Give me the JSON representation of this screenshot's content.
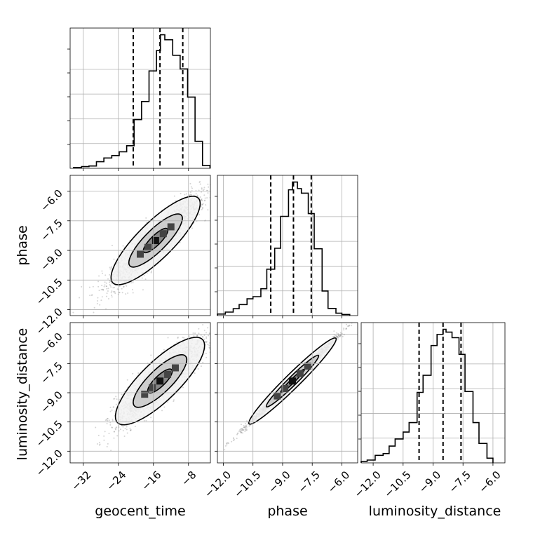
{
  "chart_data": {
    "type": "corner",
    "parameters": [
      "geocent_time",
      "phase",
      "luminosity_distance"
    ],
    "grid": true,
    "quantile_lines": "dashed",
    "histograms": [
      {
        "parameter": "geocent_time",
        "xlim": [
          -35,
          -3
        ],
        "x_ticks": [
          -32,
          -24,
          -16,
          -8
        ],
        "x_tick_labels": [
          "−32",
          "−24",
          "−16",
          "−8"
        ],
        "quantiles": [
          -20.6,
          -14.5,
          -9.3
        ],
        "bin_edges": [
          -34.2,
          -32.4,
          -30.7,
          -29.0,
          -27.3,
          -25.5,
          -23.8,
          -22.1,
          -20.4,
          -18.7,
          -17.0,
          -15.3,
          -14.4,
          -13.4,
          -11.6,
          -9.9,
          -8.2,
          -6.5,
          -4.8,
          -3.1
        ],
        "counts": [
          0.6,
          1.2,
          1.6,
          4.6,
          7.2,
          8.9,
          11.5,
          15.7,
          33.9,
          46.5,
          67.8,
          82.0,
          93.0,
          89.5,
          78.7,
          69.2,
          49.6,
          18.8,
          2.0
        ]
      },
      {
        "parameter": "phase",
        "xlim": [
          -12.3,
          -5.2
        ],
        "x_ticks": [
          -12.0,
          -10.5,
          -9.0,
          -7.5,
          -6.0
        ],
        "x_tick_labels": [
          "−12.0",
          "−10.5",
          "−9.0",
          "−7.5",
          "−6.0"
        ],
        "quantiles": [
          -9.6,
          -8.45,
          -7.55
        ],
        "bin_edges": [
          -12.3,
          -11.9,
          -11.5,
          -11.2,
          -10.8,
          -10.5,
          -10.1,
          -9.8,
          -9.4,
          -9.1,
          -8.7,
          -8.5,
          -8.25,
          -8.05,
          -7.7,
          -7.4,
          -7.0,
          -6.7,
          -6.3,
          -6.0,
          -5.6
        ],
        "counts": [
          1.0,
          2.3,
          4.5,
          7.2,
          11.0,
          12.4,
          17.6,
          30.4,
          44.1,
          65.0,
          82.4,
          87.5,
          83.2,
          80.2,
          66.8,
          43.8,
          16.1,
          4.7,
          1.6,
          0.7
        ]
      },
      {
        "parameter": "luminosity_distance",
        "xlim": [
          -12.6,
          -5.4
        ],
        "x_ticks": [
          -12.0,
          -10.5,
          -9.0,
          -7.5,
          -6.0
        ],
        "x_tick_labels": [
          "−12.0",
          "−10.5",
          "−9.0",
          "−7.5",
          "−6.0"
        ],
        "quantiles": [
          -9.7,
          -8.5,
          -7.6
        ],
        "bin_edges": [
          -12.6,
          -12.3,
          -11.9,
          -11.5,
          -11.2,
          -10.9,
          -10.5,
          -10.2,
          -9.8,
          -9.5,
          -9.1,
          -8.8,
          -8.5,
          -8.35,
          -8.05,
          -7.7,
          -7.4,
          -7.0,
          -6.7,
          -6.3,
          -6.0
        ],
        "counts": [
          1.0,
          1.9,
          5.1,
          6.3,
          11.4,
          16.2,
          20.9,
          27.3,
          47.8,
          59.4,
          79.6,
          87.1,
          90.6,
          88.7,
          84.9,
          73.6,
          48.4,
          27.3,
          13.2,
          3.2
        ]
      }
    ],
    "scatter_panels": [
      {
        "x": "geocent_time",
        "y": "phase",
        "y_ticks": [
          -12.0,
          -10.5,
          -9.0,
          -7.5,
          -6.0
        ],
        "y_tick_labels": [
          "−12.0",
          "−10.5",
          "−9.0",
          "−7.5",
          "−6.0"
        ],
        "ylim": [
          -12.3,
          -5.2
        ],
        "center": [
          -15.5,
          -8.5
        ],
        "sd": [
          5.0,
          1.1
        ],
        "correlation": 0.9,
        "contours_sigma": [
          0.55,
          1.2,
          2.0
        ]
      },
      {
        "x": "geocent_time",
        "y": "luminosity_distance",
        "y_ticks": [
          -12.0,
          -10.5,
          -9.0,
          -7.5,
          -6.0
        ],
        "y_tick_labels": [
          "−12.0",
          "−10.5",
          "−9.0",
          "−7.5",
          "−6.0"
        ],
        "ylim": [
          -12.6,
          -5.4
        ],
        "center": [
          -14.5,
          -8.4
        ],
        "sd": [
          5.0,
          1.1
        ],
        "correlation": 0.88,
        "contours_sigma": [
          0.55,
          1.2,
          2.0
        ]
      },
      {
        "x": "phase",
        "y": "luminosity_distance",
        "ylim": [
          -12.6,
          -5.4
        ],
        "center": [
          -8.5,
          -8.4
        ],
        "sd": [
          1.1,
          1.1
        ],
        "correlation": 0.995,
        "contours_sigma": [
          0.55,
          1.2,
          2.0
        ]
      }
    ],
    "axis_labels": {
      "x": [
        "geocent_time",
        "phase",
        "luminosity_distance"
      ],
      "y": [
        "phase",
        "luminosity_distance"
      ]
    }
  }
}
